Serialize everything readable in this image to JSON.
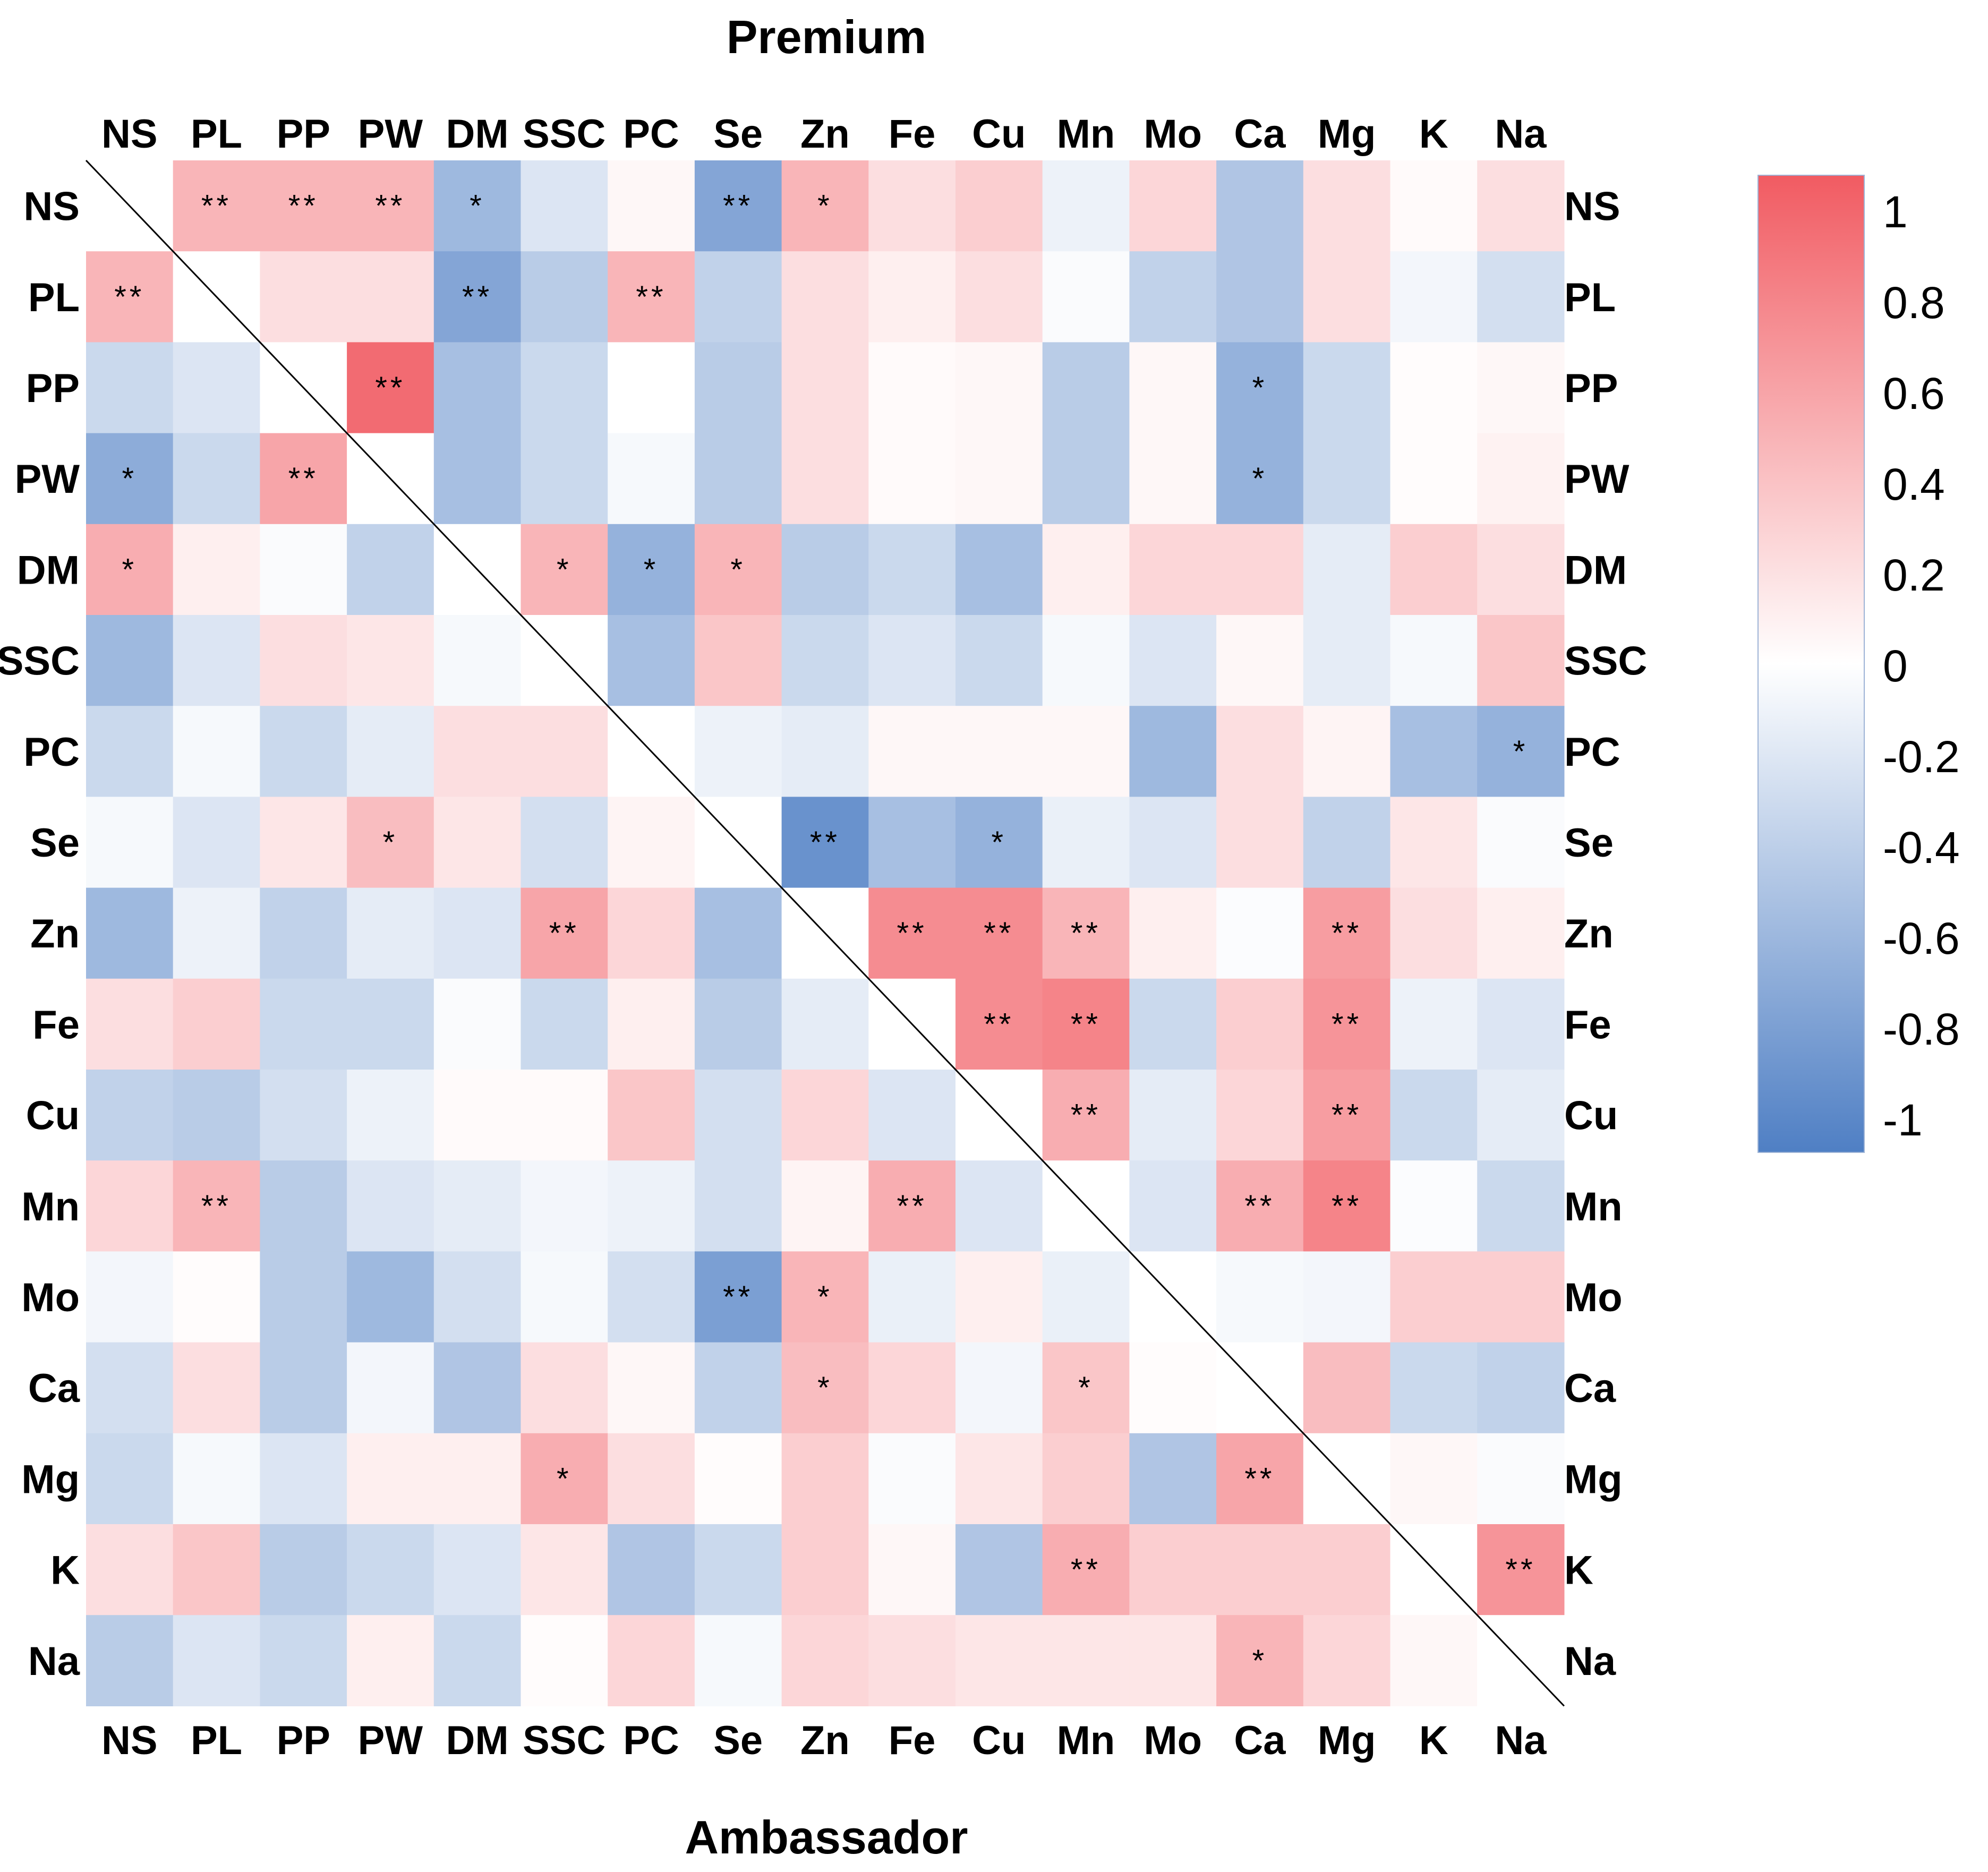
{
  "chart_data": {
    "type": "heatmap",
    "title_top": "Premium",
    "title_bottom": "Ambassador",
    "variables": [
      "NS",
      "PL",
      "PP",
      "PW",
      "DM",
      "SSC",
      "PC",
      "Se",
      "Zn",
      "Fe",
      "Cu",
      "Mn",
      "Mo",
      "Ca",
      "Mg",
      "K",
      "Na"
    ],
    "upper_triangle_dataset": "Premium",
    "lower_triangle_dataset": "Ambassador",
    "matrix": [
      [
        0,
        0.45,
        0.45,
        0.45,
        -0.55,
        -0.2,
        0.05,
        -0.7,
        0.45,
        0.2,
        0.3,
        -0.1,
        0.25,
        -0.45,
        0.2,
        0.03,
        0.2
      ],
      [
        0.45,
        0,
        0.2,
        0.2,
        -0.7,
        -0.4,
        0.45,
        -0.35,
        0.2,
        0.1,
        0.2,
        -0.03,
        -0.35,
        -0.45,
        0.2,
        -0.07,
        -0.25
      ],
      [
        -0.3,
        -0.2,
        0,
        0.9,
        -0.5,
        -0.3,
        0,
        -0.4,
        0.2,
        0.03,
        0.05,
        -0.4,
        0.05,
        -0.6,
        -0.3,
        0.02,
        0.05
      ],
      [
        -0.65,
        -0.3,
        0.55,
        0,
        -0.5,
        -0.3,
        -0.05,
        -0.4,
        0.2,
        0.03,
        0.05,
        -0.4,
        0.05,
        -0.6,
        -0.3,
        0.02,
        0.08
      ],
      [
        0.5,
        0.1,
        -0.03,
        -0.35,
        0,
        0.45,
        -0.6,
        0.45,
        -0.4,
        -0.3,
        -0.5,
        0.1,
        0.25,
        0.25,
        -0.15,
        0.3,
        0.2
      ],
      [
        -0.55,
        -0.2,
        0.2,
        0.15,
        -0.05,
        0,
        -0.5,
        0.35,
        -0.3,
        -0.2,
        -0.3,
        -0.05,
        -0.2,
        0.05,
        -0.15,
        -0.05,
        0.35
      ],
      [
        -0.3,
        -0.05,
        -0.3,
        -0.15,
        0.2,
        0.2,
        0,
        -0.1,
        -0.15,
        0.05,
        0.05,
        0.05,
        -0.55,
        0.2,
        0.07,
        -0.5,
        -0.6
      ],
      [
        -0.05,
        -0.2,
        0.15,
        0.4,
        0.15,
        -0.25,
        0.07,
        0,
        -0.85,
        -0.5,
        -0.6,
        -0.12,
        -0.2,
        0.2,
        -0.35,
        0.15,
        -0.03
      ],
      [
        -0.55,
        -0.1,
        -0.35,
        -0.15,
        -0.2,
        0.55,
        0.25,
        -0.5,
        0,
        0.7,
        0.7,
        0.45,
        0.1,
        -0.02,
        0.6,
        0.2,
        0.1
      ],
      [
        0.2,
        0.3,
        -0.3,
        -0.3,
        -0.03,
        -0.3,
        0.1,
        -0.4,
        -0.15,
        0,
        0.7,
        0.75,
        -0.3,
        0.3,
        0.65,
        -0.1,
        -0.2
      ],
      [
        -0.35,
        -0.4,
        -0.25,
        -0.1,
        0.03,
        0.03,
        0.35,
        -0.25,
        0.25,
        -0.2,
        0,
        0.5,
        -0.15,
        0.25,
        0.6,
        -0.3,
        -0.15
      ],
      [
        0.25,
        0.45,
        -0.4,
        -0.2,
        -0.15,
        -0.07,
        -0.1,
        -0.25,
        0.07,
        0.5,
        -0.2,
        0,
        -0.2,
        0.5,
        0.75,
        -0.02,
        -0.3
      ],
      [
        -0.07,
        0.02,
        -0.4,
        -0.55,
        -0.25,
        -0.05,
        -0.25,
        -0.75,
        0.45,
        -0.12,
        0.1,
        -0.12,
        0,
        -0.05,
        -0.07,
        0.3,
        0.3
      ],
      [
        -0.25,
        0.2,
        -0.4,
        -0.07,
        -0.45,
        0.2,
        0.05,
        -0.35,
        0.4,
        0.25,
        -0.07,
        0.35,
        0.02,
        0,
        0.4,
        -0.3,
        -0.35
      ],
      [
        -0.3,
        -0.05,
        -0.2,
        0.1,
        0.1,
        0.5,
        0.2,
        0.02,
        0.3,
        -0.03,
        0.15,
        0.3,
        -0.45,
        0.55,
        0,
        0.05,
        -0.03
      ],
      [
        0.2,
        0.35,
        -0.4,
        -0.3,
        -0.2,
        0.15,
        -0.45,
        -0.3,
        0.3,
        0.05,
        -0.45,
        0.5,
        0.3,
        0.3,
        0.3,
        0,
        0.65
      ],
      [
        -0.4,
        -0.2,
        -0.3,
        0.1,
        -0.3,
        0.02,
        0.25,
        -0.05,
        0.25,
        0.2,
        0.15,
        0.15,
        0.15,
        0.45,
        0.25,
        0.05,
        0
      ]
    ],
    "significance": [
      [
        "",
        "**",
        "**",
        "**",
        "*",
        "",
        "",
        "**",
        "*",
        "",
        "",
        "",
        "",
        "",
        "",
        "",
        ""
      ],
      [
        "**",
        "",
        "",
        "",
        "**",
        "",
        "**",
        "",
        "",
        "",
        "",
        "",
        "",
        "",
        "",
        "",
        ""
      ],
      [
        "",
        "",
        "",
        "**",
        "",
        "",
        "",
        "",
        "",
        "",
        "",
        "",
        "",
        "*",
        "",
        "",
        ""
      ],
      [
        "*",
        "",
        "**",
        "",
        "",
        "",
        "",
        "",
        "",
        "",
        "",
        "",
        "",
        "*",
        "",
        "",
        ""
      ],
      [
        "*",
        "",
        "",
        "",
        "",
        "*",
        "*",
        "*",
        "",
        "",
        "",
        "",
        "",
        "",
        "",
        "",
        ""
      ],
      [
        "",
        "",
        "",
        "",
        "",
        "",
        "",
        "",
        "",
        "",
        "",
        "",
        "",
        "",
        "",
        "",
        ""
      ],
      [
        "",
        "",
        "",
        "",
        "",
        "",
        "",
        "",
        "",
        "",
        "",
        "",
        "",
        "",
        "",
        "",
        "*"
      ],
      [
        "",
        "",
        "",
        "*",
        "",
        "",
        "",
        "",
        "**",
        "",
        "*",
        "",
        "",
        "",
        "",
        "",
        ""
      ],
      [
        "",
        "",
        "",
        "",
        "",
        "**",
        "",
        "",
        "",
        "**",
        "**",
        "**",
        "",
        "",
        "**",
        "",
        ""
      ],
      [
        "",
        "",
        "",
        "",
        "",
        "",
        "",
        "",
        "",
        "",
        "**",
        "**",
        "",
        "",
        "**",
        "",
        ""
      ],
      [
        "",
        "",
        "",
        "",
        "",
        "",
        "",
        "",
        "",
        "",
        "",
        "**",
        "",
        "",
        "**",
        "",
        ""
      ],
      [
        "",
        "**",
        "",
        "",
        "",
        "",
        "",
        "",
        "",
        "**",
        "",
        "",
        "",
        "**",
        "**",
        "",
        ""
      ],
      [
        "",
        "",
        "",
        "",
        "",
        "",
        "",
        "**",
        "*",
        "",
        "",
        "",
        "",
        "",
        "",
        "",
        ""
      ],
      [
        "",
        "",
        "",
        "",
        "",
        "",
        "",
        "",
        "*",
        "",
        "",
        "*",
        "",
        "",
        "",
        "",
        ""
      ],
      [
        "",
        "",
        "",
        "",
        "",
        "*",
        "",
        "",
        "",
        "",
        "",
        "",
        "",
        "**",
        "",
        "",
        ""
      ],
      [
        "",
        "",
        "",
        "",
        "",
        "",
        "",
        "",
        "",
        "",
        "",
        "**",
        "",
        "",
        "",
        "",
        "**"
      ],
      [
        "",
        "",
        "",
        "",
        "",
        "",
        "",
        "",
        "",
        "",
        "",
        "",
        "",
        "*",
        "",
        "",
        ""
      ]
    ],
    "colorbar": {
      "min": -1,
      "max": 1,
      "ticks": [
        1,
        0.8,
        0.6,
        0.4,
        0.2,
        0,
        -0.2,
        -0.4,
        -0.6,
        -0.8,
        -1
      ],
      "tick_labels": [
        "1",
        "0.8",
        "0.6",
        "0.4",
        "0.2",
        "0",
        "-0.2",
        "-0.4",
        "-0.6",
        "-0.8",
        "-1"
      ]
    },
    "colors": {
      "positive": "#f15b62",
      "negative": "#4f7fc4",
      "neutral": "#ffffff",
      "diagonal_line": "#000000"
    }
  }
}
